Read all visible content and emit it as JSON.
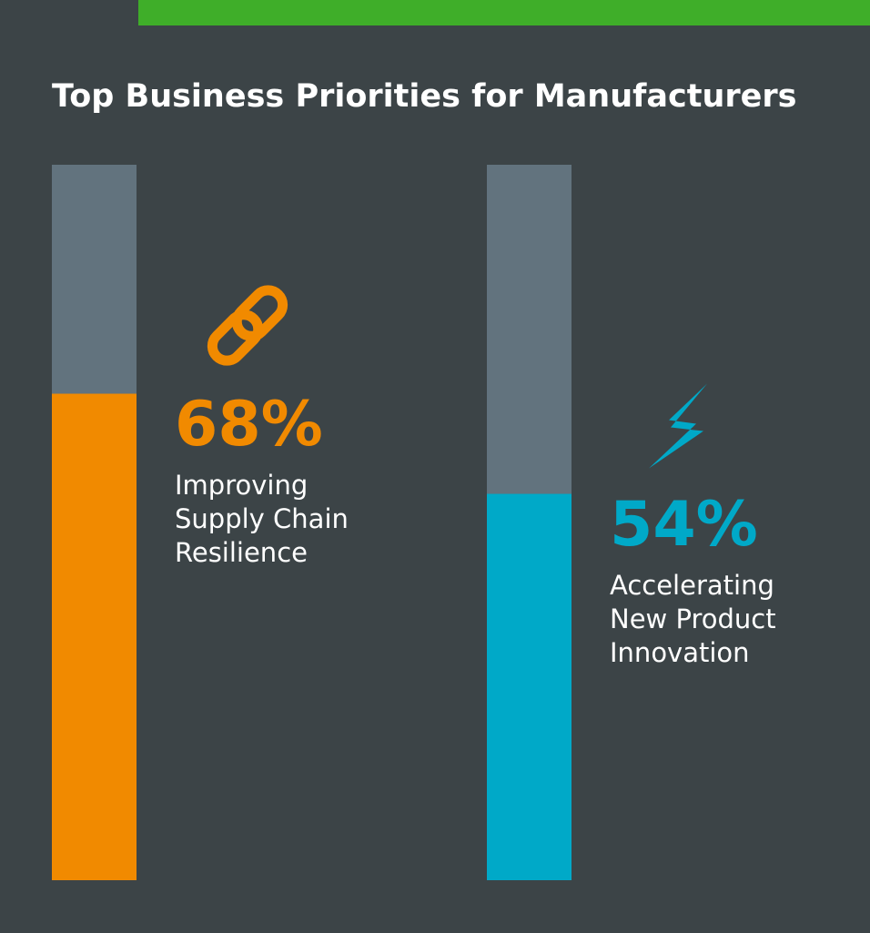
{
  "chart_data": {
    "type": "bar",
    "title": "Top Business Priorities for Manufacturers",
    "categories": [
      "Improving\nSupply Chain\nResilience",
      "Accelerating\nNew Product\nInnovation"
    ],
    "values": [
      68,
      54
    ],
    "value_labels": [
      "68%",
      "54%"
    ],
    "colors": [
      "#f18a00",
      "#00a9c8"
    ],
    "track_color": "#62737e",
    "ylim": [
      0,
      100
    ]
  }
}
